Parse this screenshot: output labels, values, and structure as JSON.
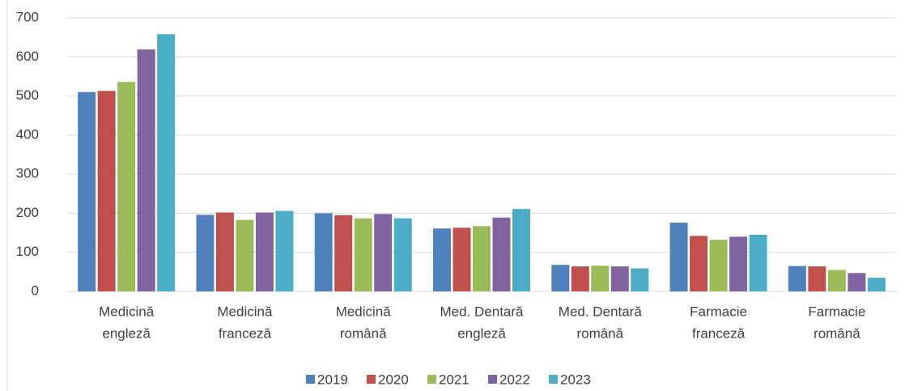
{
  "chart_data": {
    "type": "bar",
    "categories": [
      [
        "Medicină",
        "engleză"
      ],
      [
        "Medicină",
        "franceză"
      ],
      [
        "Medicină",
        "română"
      ],
      [
        "Med. Dentară",
        "engleză"
      ],
      [
        "Med. Dentară",
        "română"
      ],
      [
        "Farmacie",
        "franceză"
      ],
      [
        "Farmacie",
        "română"
      ]
    ],
    "series": [
      {
        "name": "2019",
        "color": "#4f81bd",
        "values": [
          510,
          196,
          200,
          161,
          68,
          176,
          65
        ]
      },
      {
        "name": "2020",
        "color": "#c0504d",
        "values": [
          513,
          202,
          195,
          163,
          64,
          142,
          64
        ]
      },
      {
        "name": "2021",
        "color": "#9bbb59",
        "values": [
          536,
          183,
          187,
          167,
          66,
          132,
          55
        ]
      },
      {
        "name": "2022",
        "color": "#8064a2",
        "values": [
          619,
          202,
          198,
          189,
          64,
          140,
          47
        ]
      },
      {
        "name": "2023",
        "color": "#4bacc6",
        "values": [
          658,
          206,
          187,
          211,
          59,
          145,
          35
        ]
      }
    ],
    "ylim": [
      0,
      700
    ],
    "yticks": [
      0,
      100,
      200,
      300,
      400,
      500,
      600,
      700
    ],
    "grid": true,
    "legend": "bottom"
  }
}
